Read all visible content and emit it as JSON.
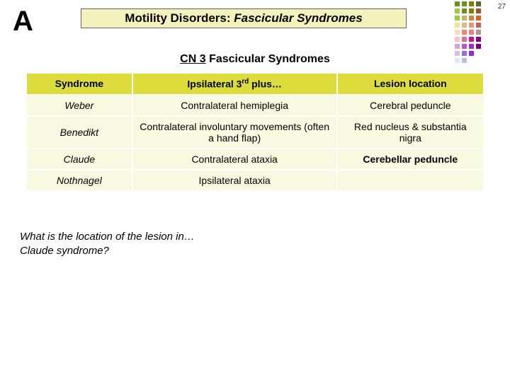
{
  "slide_number": "27",
  "letter": "A",
  "title": {
    "plain": "Motility Disorders: ",
    "italic": "Fascicular Syndromes"
  },
  "subtitle": {
    "underlined": "CN 3",
    "rest": " Fascicular Syndromes"
  },
  "table": {
    "headers": [
      "Syndrome",
      "Ipsilateral 3rd plus…",
      "Lesion location"
    ],
    "header_bg": "#dcdc3c",
    "row_bg": "#f9f8e0",
    "rows": [
      {
        "syndrome": "Weber",
        "finding": "Contralateral hemiplegia",
        "location": "Cerebral peduncle",
        "highlight": false
      },
      {
        "syndrome": "Benedikt",
        "finding": "Contralateral involuntary movements (often a hand flap)",
        "location": "Red nucleus & substantia nigra",
        "highlight": false
      },
      {
        "syndrome": "Claude",
        "finding": "Contralateral ataxia",
        "location": "Cerebellar peduncle",
        "highlight": true
      },
      {
        "syndrome": "Nothnagel",
        "finding": "Ipsilateral ataxia",
        "location": "",
        "highlight": false
      }
    ]
  },
  "question": {
    "line1": "What is the location of the lesion in…",
    "line2": "Claude syndrome?"
  },
  "deco": {
    "colors": [
      [
        "#6b8e23",
        "#6b8e23",
        "#808000",
        "#556b2f"
      ],
      [
        "#9acd32",
        "#6b8e23",
        "#808000",
        "#a0522d"
      ],
      [
        "#9acd32",
        "#bdb76b",
        "#cd853f",
        "#d2691e"
      ],
      [
        "#f0e68c",
        "#deb887",
        "#e9967a",
        "#cd5c5c"
      ],
      [
        "#ffdab9",
        "#fa8072",
        "#f08080",
        "#bc8f8f"
      ],
      [
        "#ffc0cb",
        "#db7093",
        "#c71585",
        "#8b008b"
      ],
      [
        "#dda0dd",
        "#ba55d3",
        "#9932cc",
        "#800080"
      ],
      [
        "#d8bfd8",
        "#9370db",
        "#8a2be2"
      ],
      [
        "#e6e6fa",
        "#b0c4de"
      ]
    ]
  }
}
